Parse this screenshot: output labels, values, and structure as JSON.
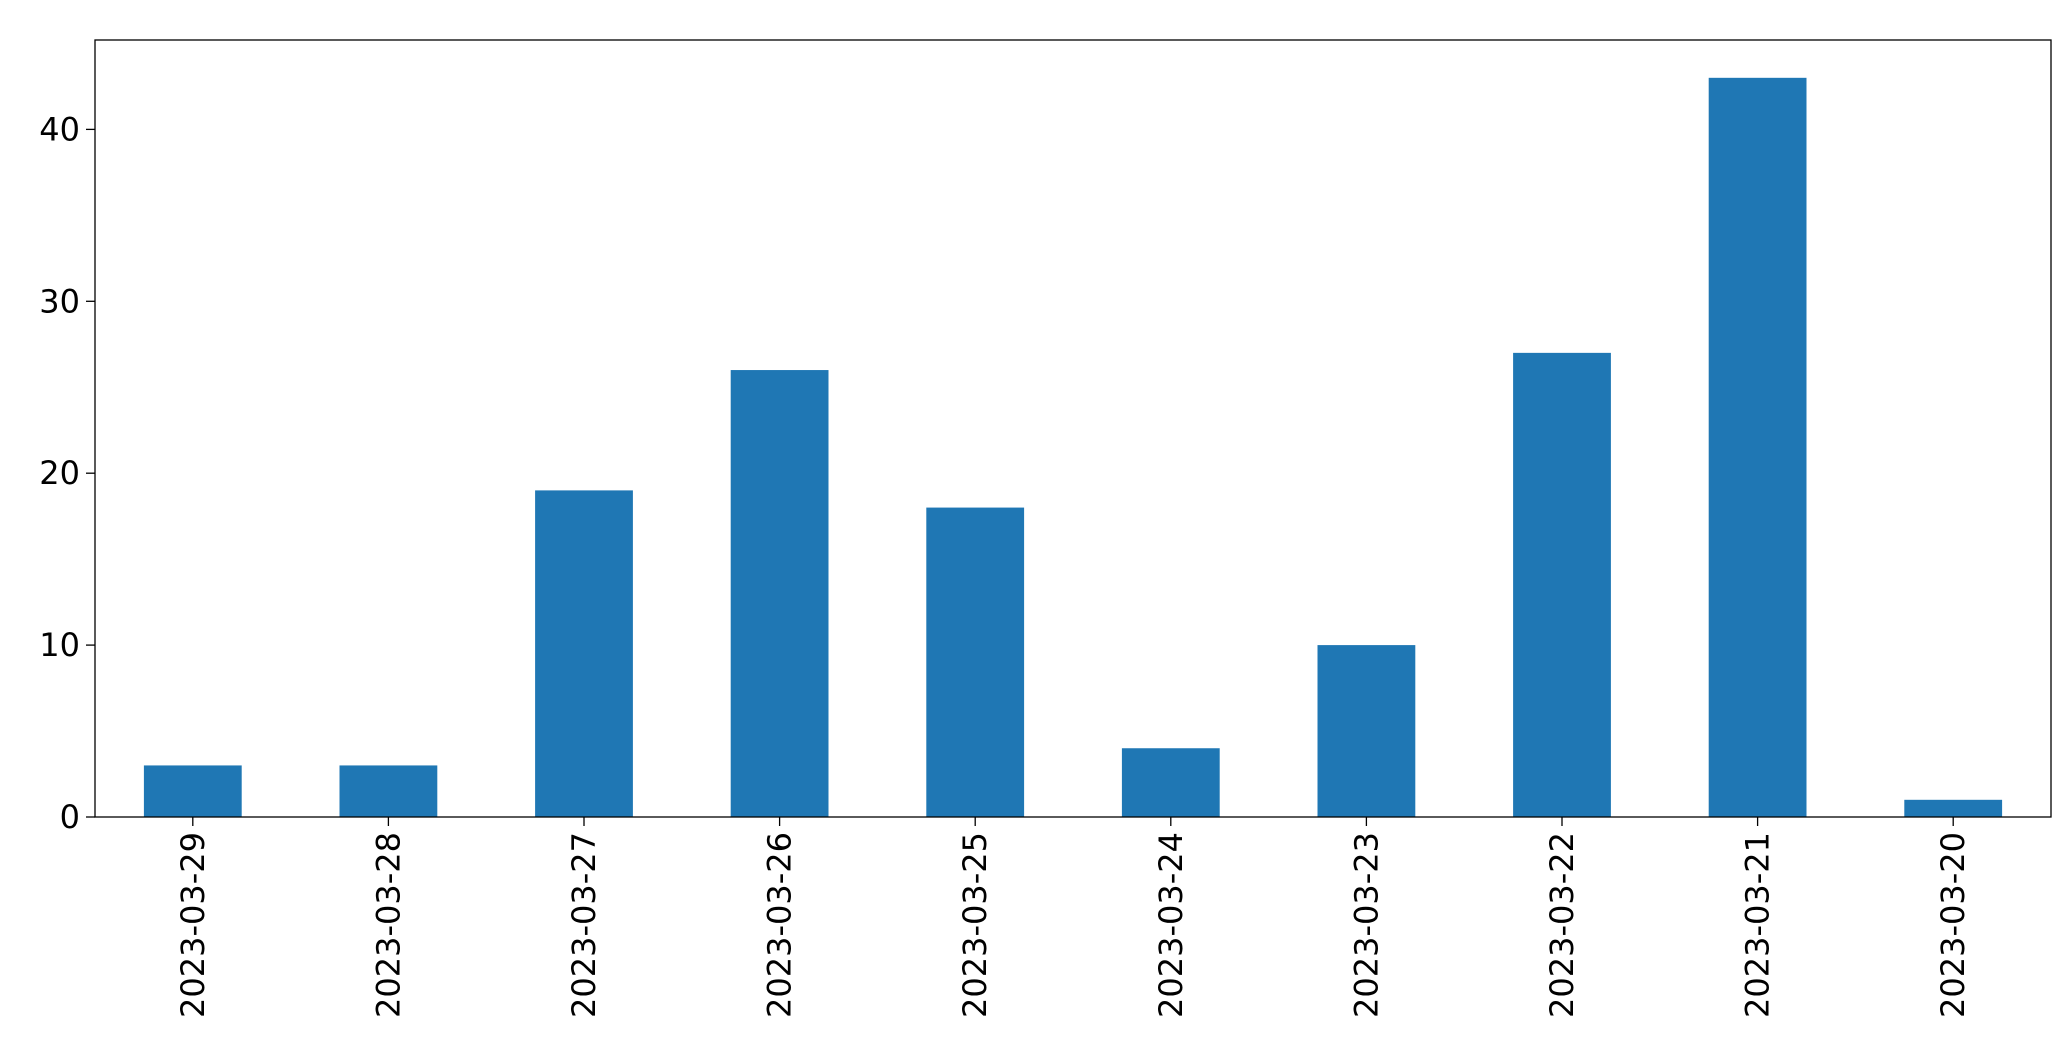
{
  "chart_data": {
    "type": "bar",
    "categories": [
      "2023-03-29",
      "2023-03-28",
      "2023-03-27",
      "2023-03-26",
      "2023-03-25",
      "2023-03-24",
      "2023-03-23",
      "2023-03-22",
      "2023-03-21",
      "2023-03-20"
    ],
    "values": [
      3,
      3,
      19,
      26,
      18,
      4,
      10,
      27,
      43,
      1
    ],
    "color": "#1f77b4",
    "ylim": [
      0,
      45.2
    ],
    "yticks": [
      0,
      10,
      20,
      30,
      40
    ],
    "grid": false
  }
}
